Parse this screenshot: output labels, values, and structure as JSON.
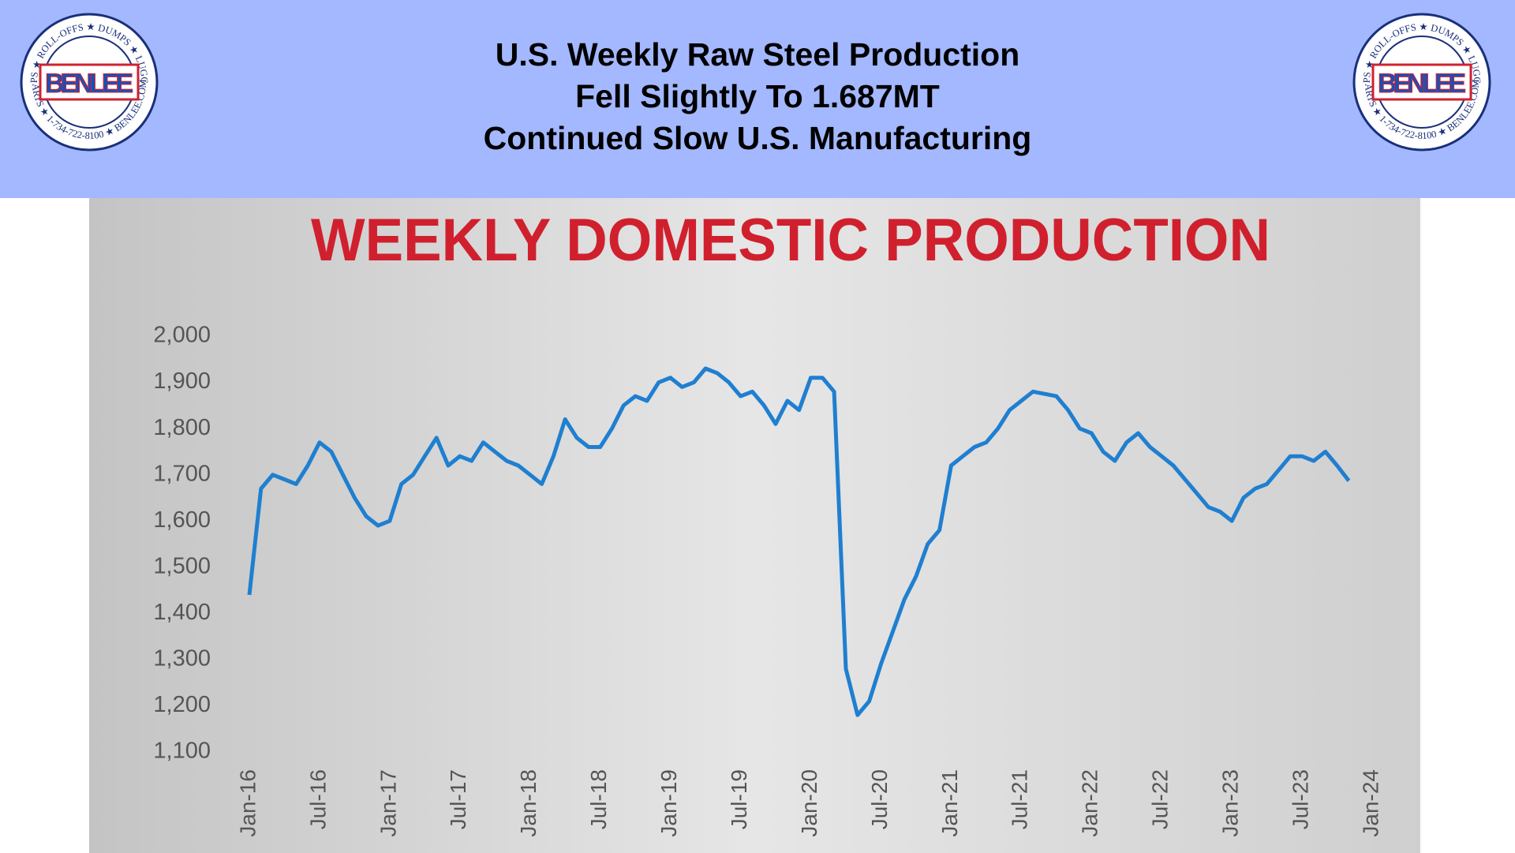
{
  "header": {
    "title_lines": [
      "U.S. Weekly Raw Steel Production",
      "Fell Slightly To 1.687MT",
      "Continued Slow U.S. Manufacturing"
    ]
  },
  "logo": {
    "name": "BENLEE",
    "ring_top": "TARPS ★ ROLL-OFFS ★ DUMPS ★ LUGGERS",
    "ring_bottom": "PARTS ★ 1-734-722-8100 ★ BENLEE.COM"
  },
  "chart_data": {
    "type": "line",
    "title": "WEEKLY DOMESTIC PRODUCTION",
    "x": [
      "Jan-16",
      "Feb-16",
      "Mar-16",
      "Apr-16",
      "May-16",
      "Jun-16",
      "Jul-16",
      "Aug-16",
      "Sep-16",
      "Oct-16",
      "Nov-16",
      "Dec-16",
      "Jan-17",
      "Feb-17",
      "Mar-17",
      "Apr-17",
      "May-17",
      "Jun-17",
      "Jul-17",
      "Aug-17",
      "Sep-17",
      "Oct-17",
      "Nov-17",
      "Dec-17",
      "Jan-18",
      "Feb-18",
      "Mar-18",
      "Apr-18",
      "May-18",
      "Jun-18",
      "Jul-18",
      "Aug-18",
      "Sep-18",
      "Oct-18",
      "Nov-18",
      "Dec-18",
      "Jan-19",
      "Feb-19",
      "Mar-19",
      "Apr-19",
      "May-19",
      "Jun-19",
      "Jul-19",
      "Aug-19",
      "Sep-19",
      "Oct-19",
      "Nov-19",
      "Dec-19",
      "Jan-20",
      "Feb-20",
      "Mar-20",
      "Apr-20",
      "May-20",
      "Jun-20",
      "Jul-20",
      "Aug-20",
      "Sep-20",
      "Oct-20",
      "Nov-20",
      "Dec-20",
      "Jan-21",
      "Feb-21",
      "Mar-21",
      "Apr-21",
      "May-21",
      "Jun-21",
      "Jul-21",
      "Aug-21",
      "Sep-21",
      "Oct-21",
      "Nov-21",
      "Dec-21",
      "Jan-22",
      "Feb-22",
      "Mar-22",
      "Apr-22",
      "May-22",
      "Jun-22",
      "Jul-22",
      "Aug-22",
      "Sep-22",
      "Oct-22",
      "Nov-22",
      "Dec-22",
      "Jan-23",
      "Feb-23",
      "Mar-23",
      "Apr-23",
      "May-23",
      "Jun-23",
      "Jul-23",
      "Aug-23",
      "Sep-23",
      "Oct-23",
      "Nov-23"
    ],
    "series": [
      {
        "color": "#1f7fd0",
        "values": [
          1440,
          1670,
          1700,
          1690,
          1680,
          1720,
          1770,
          1750,
          1700,
          1650,
          1610,
          1590,
          1600,
          1680,
          1700,
          1740,
          1780,
          1720,
          1740,
          1730,
          1770,
          1750,
          1730,
          1720,
          1700,
          1680,
          1740,
          1820,
          1780,
          1760,
          1760,
          1800,
          1850,
          1870,
          1860,
          1900,
          1910,
          1890,
          1900,
          1930,
          1920,
          1900,
          1870,
          1880,
          1850,
          1810,
          1860,
          1840,
          1910,
          1910,
          1880,
          1280,
          1180,
          1210,
          1290,
          1360,
          1430,
          1480,
          1550,
          1580,
          1720,
          1740,
          1760,
          1770,
          1800,
          1840,
          1860,
          1880,
          1875,
          1870,
          1840,
          1800,
          1790,
          1750,
          1730,
          1770,
          1790,
          1760,
          1740,
          1720,
          1690,
          1660,
          1630,
          1620,
          1600,
          1650,
          1670,
          1680,
          1710,
          1740,
          1740,
          1730,
          1750,
          1720,
          1687
        ]
      }
    ],
    "ylim": [
      1100,
      2000
    ],
    "yticks": [
      {
        "value": 1100,
        "label": "1,100"
      },
      {
        "value": 1200,
        "label": "1,200"
      },
      {
        "value": 1300,
        "label": "1,300"
      },
      {
        "value": 1400,
        "label": "1,400"
      },
      {
        "value": 1500,
        "label": "1,500"
      },
      {
        "value": 1600,
        "label": "1,600"
      },
      {
        "value": 1700,
        "label": "1,700"
      },
      {
        "value": 1800,
        "label": "1,800"
      },
      {
        "value": 1900,
        "label": "1,900"
      },
      {
        "value": 2000,
        "label": "2,000"
      }
    ],
    "xticks": [
      "Jan-16",
      "Jul-16",
      "Jan-17",
      "Jul-17",
      "Jan-18",
      "Jul-18",
      "Jan-19",
      "Jul-19",
      "Jan-20",
      "Jul-20",
      "Jan-21",
      "Jul-21",
      "Jan-22",
      "Jul-22",
      "Jan-23",
      "Jul-23",
      "Jan-24"
    ]
  }
}
